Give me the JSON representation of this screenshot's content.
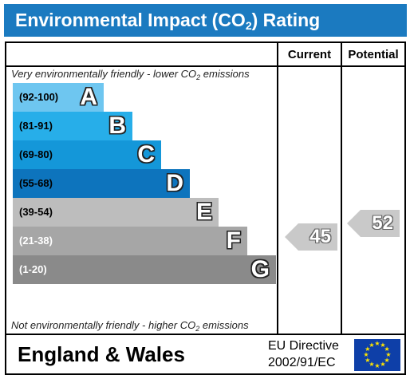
{
  "title": {
    "prefix": "Environmental Impact (CO",
    "sub": "2",
    "suffix": ") Rating"
  },
  "columns": {
    "current": "Current",
    "potential": "Potential"
  },
  "top_caption": {
    "prefix": "Very environmentally friendly - lower CO",
    "sub": "2",
    "suffix": " emissions"
  },
  "bottom_caption": {
    "prefix": "Not environmentally friendly - higher CO",
    "sub": "2",
    "suffix": " emissions"
  },
  "bands": [
    {
      "range": "(92-100)",
      "letter": "A",
      "color": "#6ec6f0",
      "range_color": "#000000"
    },
    {
      "range": "(81-91)",
      "letter": "B",
      "color": "#27aee9",
      "range_color": "#000000"
    },
    {
      "range": "(69-80)",
      "letter": "C",
      "color": "#1497d9",
      "range_color": "#000000"
    },
    {
      "range": "(55-68)",
      "letter": "D",
      "color": "#0d74bd",
      "range_color": "#000000"
    },
    {
      "range": "(39-54)",
      "letter": "E",
      "color": "#bdbdbd",
      "range_color": "#000000"
    },
    {
      "range": "(21-38)",
      "letter": "F",
      "color": "#a6a6a6",
      "range_color": "#ffffff"
    },
    {
      "range": "(1-20)",
      "letter": "G",
      "color": "#8a8a8a",
      "range_color": "#ffffff"
    }
  ],
  "current_rating": {
    "value": "45",
    "band": "E",
    "color": "#c9c9c9"
  },
  "potential_rating": {
    "value": "52",
    "band": "E",
    "color": "#c9c9c9"
  },
  "footer": {
    "region": "England & Wales",
    "directive_line1": "EU Directive",
    "directive_line2": "2002/91/EC",
    "flag_icon": "eu-flag-icon"
  }
}
